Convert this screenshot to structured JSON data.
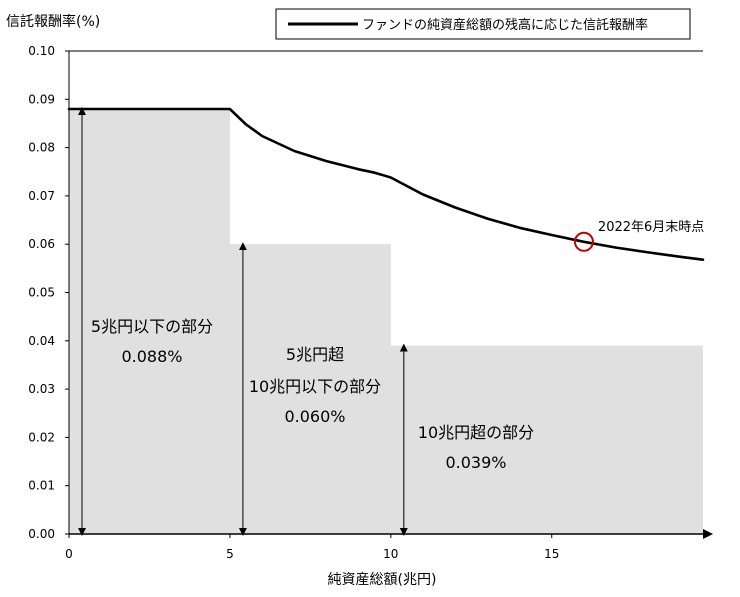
{
  "chart_data": {
    "type": "line",
    "title": "",
    "ylabel": "信託報酬率(%)",
    "xlabel": "純資産総額(兆円)",
    "xlim": [
      0,
      19.7
    ],
    "ylim": [
      0,
      0.1
    ],
    "grid": false,
    "legend_position": "top-right",
    "x_ticks": [
      "0",
      "5",
      "10",
      "15"
    ],
    "x_tick_values": [
      0,
      5,
      10,
      15
    ],
    "y_ticks": [
      "0.00",
      "0.01",
      "0.02",
      "0.03",
      "0.04",
      "0.05",
      "0.06",
      "0.07",
      "0.08",
      "0.09",
      "0.10"
    ],
    "y_tick_values": [
      0,
      0.01,
      0.02,
      0.03,
      0.04,
      0.05,
      0.06,
      0.07,
      0.08,
      0.09,
      0.1
    ],
    "series": [
      {
        "name": "ファンドの純資産総額の残高に応じた信託報酬率",
        "color": "#000000",
        "x": [
          0,
          5,
          5.5,
          6,
          7,
          8,
          9,
          9.5,
          10,
          11,
          12,
          13,
          14,
          15,
          16,
          17,
          18,
          19,
          19.7
        ],
        "y": [
          0.088,
          0.088,
          0.0848,
          0.0824,
          0.0793,
          0.0772,
          0.0755,
          0.0748,
          0.0738,
          0.0703,
          0.0676,
          0.0653,
          0.0634,
          0.0619,
          0.0605,
          0.0593,
          0.0583,
          0.0574,
          0.0568
        ]
      }
    ],
    "tiers": [
      {
        "x_start": 0,
        "x_end": 5,
        "rate": 0.088,
        "lines": [
          "5兆円以下の部分",
          "0.088%"
        ]
      },
      {
        "x_start": 5,
        "x_end": 10,
        "rate": 0.06,
        "lines": [
          "5兆円超",
          "10兆円以下の部分",
          "0.060%"
        ]
      },
      {
        "x_start": 10,
        "x_end": 19.7,
        "rate": 0.039,
        "lines": [
          "10兆円超の部分",
          "0.039%"
        ]
      }
    ],
    "tier_fill_color": "#e0e0e0",
    "annotation": {
      "label": "2022年6月末時点",
      "x": 16,
      "y": 0.0605,
      "color": "#c00000"
    }
  }
}
